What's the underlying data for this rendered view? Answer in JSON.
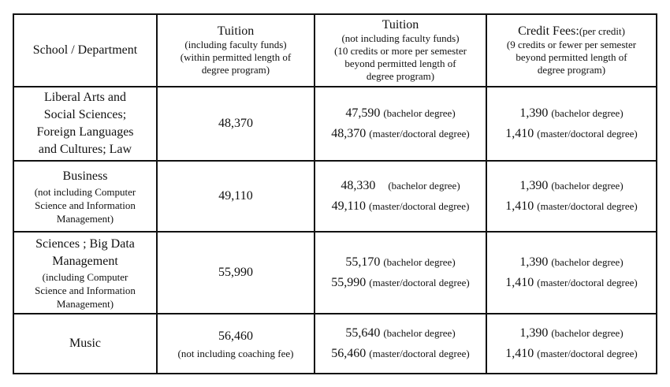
{
  "headers": {
    "school": "School / Department",
    "tuition_incl": {
      "title": "Tuition",
      "sub": [
        "(including faculty funds)",
        "(within permitted length of",
        "degree program)"
      ]
    },
    "tuition_excl": {
      "title": "Tuition",
      "sub": [
        "(not including faculty funds)",
        "(10 credits or more per semester",
        "beyond permitted length of",
        "degree program)"
      ]
    },
    "credit": {
      "title": "Credit Fees:",
      "title_suffix": "(per credit)",
      "sub": [
        "(9 credits or fewer per semester",
        "beyond permitted length of",
        "degree program)"
      ]
    }
  },
  "rows": [
    {
      "school_main": [
        "Liberal Arts and",
        "Social Sciences;",
        "Foreign Languages",
        "and Cultures; Law"
      ],
      "school_sub": [],
      "tuition_incl": "48,370",
      "tuition_incl_note": "",
      "tuition_excl": [
        {
          "amount": "47,590",
          "label": "(bachelor degree)"
        },
        {
          "amount": "48,370",
          "label": "(master/doctoral degree)"
        }
      ],
      "credit": [
        {
          "amount": "1,390",
          "label": "(bachelor degree)"
        },
        {
          "amount": "1,410",
          "label": "(master/doctoral degree)"
        }
      ]
    },
    {
      "school_main": [
        "Business"
      ],
      "school_sub": [
        "(not including Computer",
        "Science and Information",
        "Management)"
      ],
      "tuition_incl": "49,110",
      "tuition_incl_note": "",
      "tuition_excl": [
        {
          "amount": "48,330",
          "label": "(bachelor degree)"
        },
        {
          "amount": "49,110",
          "label": "(master/doctoral degree)"
        }
      ],
      "credit": [
        {
          "amount": "1,390",
          "label": "(bachelor degree)"
        },
        {
          "amount": "1,410",
          "label": "(master/doctoral degree)"
        }
      ]
    },
    {
      "school_main": [
        "Sciences ; Big Data",
        "Management"
      ],
      "school_sub": [
        "(including Computer",
        "Science and Information",
        "Management)"
      ],
      "tuition_incl": "55,990",
      "tuition_incl_note": "",
      "tuition_excl": [
        {
          "amount": "55,170",
          "label": "(bachelor degree)"
        },
        {
          "amount": "55,990",
          "label": "(master/doctoral degree)"
        }
      ],
      "credit": [
        {
          "amount": "1,390",
          "label": "(bachelor degree)"
        },
        {
          "amount": "1,410",
          "label": "(master/doctoral degree)"
        }
      ]
    },
    {
      "school_main": [
        "Music"
      ],
      "school_sub": [],
      "tuition_incl": "56,460",
      "tuition_incl_note": "(not including coaching fee)",
      "tuition_excl": [
        {
          "amount": "55,640",
          "label": "(bachelor degree)"
        },
        {
          "amount": "56,460",
          "label": "(master/doctoral degree)"
        }
      ],
      "credit": [
        {
          "amount": "1,390",
          "label": "(bachelor degree)"
        },
        {
          "amount": "1,410",
          "label": "(master/doctoral degree)"
        }
      ]
    }
  ]
}
